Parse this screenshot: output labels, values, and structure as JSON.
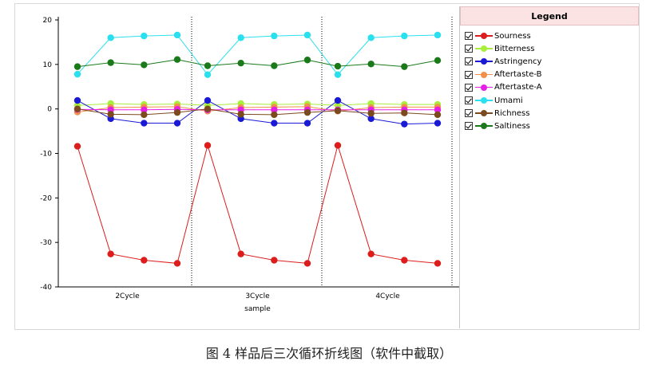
{
  "caption": "图 4 样品后三次循环折线图（软件中截取）",
  "chart_data": {
    "type": "line",
    "title": "",
    "xlabel": "sample",
    "ylabel": "",
    "ylim": [
      -40,
      20
    ],
    "yticks": [
      -40,
      -30,
      -20,
      -10,
      0,
      10,
      20
    ],
    "ytick_labels": [
      "-40",
      "-30",
      "-20",
      "-10",
      "0",
      "10",
      "20"
    ],
    "group_labels": [
      "2Cycle",
      "3Cycle",
      "4Cycle"
    ],
    "points_per_group": 4,
    "grid": false,
    "legend": {
      "title": "Legend",
      "placement": "right"
    },
    "series": [
      {
        "name": "Sourness",
        "color": "#dd1c1c",
        "values": [
          -8.4,
          -32.6,
          -34.0,
          -34.7,
          -8.2,
          -32.6,
          -34.0,
          -34.7,
          -8.2,
          -32.6,
          -34.0,
          -34.7
        ]
      },
      {
        "name": "Bitterness",
        "color": "#a8ee3a",
        "values": [
          0.8,
          1.2,
          1.0,
          1.1,
          0.8,
          1.2,
          1.0,
          1.1,
          0.8,
          1.2,
          1.0,
          1.0
        ]
      },
      {
        "name": "Astringency",
        "color": "#1a1ad6",
        "values": [
          1.9,
          -2.2,
          -3.2,
          -3.2,
          1.9,
          -2.2,
          -3.2,
          -3.2,
          1.9,
          -2.2,
          -3.4,
          -3.2
        ]
      },
      {
        "name": "Aftertaste-B",
        "color": "#f0904a",
        "values": [
          -0.7,
          0.3,
          0.4,
          0.5,
          -0.5,
          0.3,
          0.4,
          0.5,
          -0.5,
          0.3,
          0.4,
          0.4
        ]
      },
      {
        "name": "Aftertaste-A",
        "color": "#e51fe5",
        "values": [
          -0.1,
          -0.2,
          -0.2,
          -0.1,
          -0.2,
          -0.2,
          -0.2,
          -0.2,
          -0.2,
          -0.2,
          -0.2,
          -0.2
        ]
      },
      {
        "name": "Umami",
        "color": "#2be0ee",
        "values": [
          7.8,
          16.0,
          16.4,
          16.6,
          7.7,
          16.0,
          16.4,
          16.6,
          7.7,
          16.0,
          16.4,
          16.6
        ]
      },
      {
        "name": "Richness",
        "color": "#7b4a1e",
        "values": [
          0.0,
          -1.2,
          -1.3,
          -0.8,
          0.0,
          -1.2,
          -1.3,
          -0.8,
          -0.4,
          -1.0,
          -0.9,
          -1.3
        ]
      },
      {
        "name": "Saltiness",
        "color": "#1a7a1a",
        "values": [
          9.5,
          10.4,
          9.9,
          11.1,
          9.7,
          10.3,
          9.7,
          11.0,
          9.6,
          10.1,
          9.5,
          10.9
        ]
      }
    ]
  }
}
